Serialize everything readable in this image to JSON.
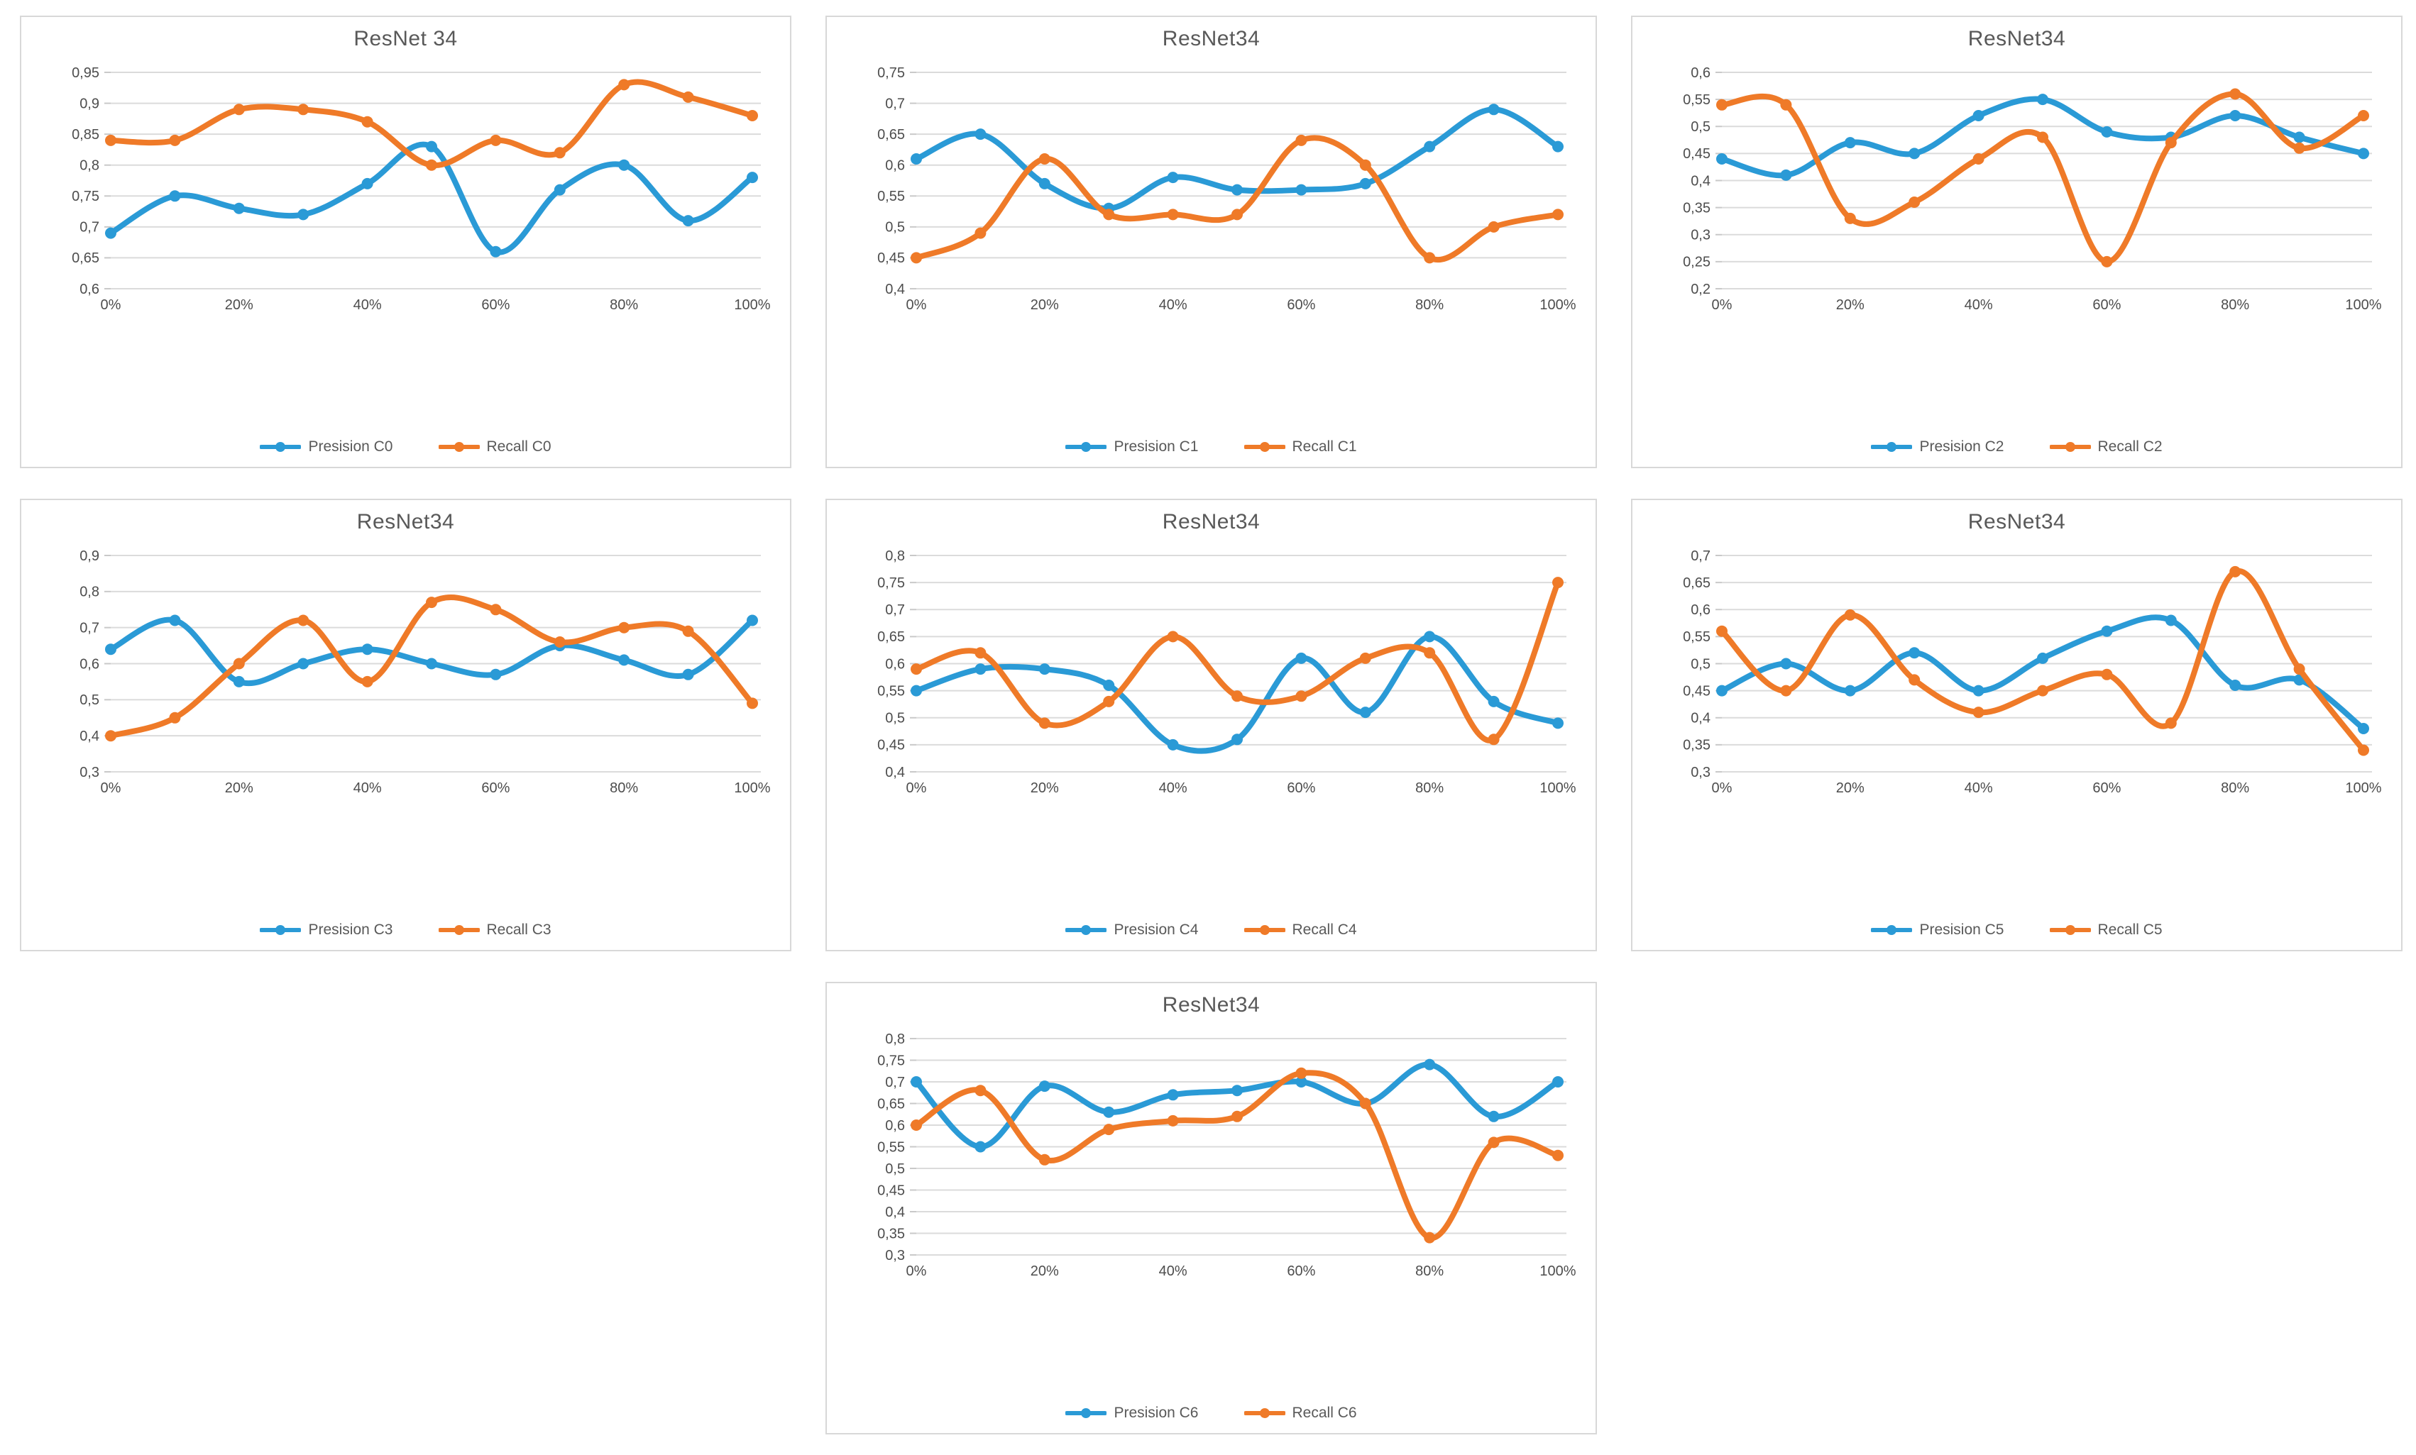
{
  "colors": {
    "precision": "#2A9AD6",
    "recall": "#EF7A28",
    "gridline": "#DBDBDB",
    "panel_border": "#D8D8D8",
    "tick_text": "#4D4D4D",
    "title_text": "#595959"
  },
  "chart_data": [
    {
      "type": "line",
      "title": "ResNet 34",
      "x": [
        0,
        10,
        20,
        30,
        40,
        50,
        60,
        70,
        80,
        90,
        100
      ],
      "x_tick_labels": [
        "0%",
        "20%",
        "40%",
        "60%",
        "80%",
        "100%"
      ],
      "ylim": [
        0.6,
        0.95
      ],
      "y_step": 0.05,
      "grid": "horizontal",
      "legend_position": "bottom",
      "smooth": true,
      "series": [
        {
          "name": "Presision C0",
          "color": "#2A9AD6",
          "values": [
            0.69,
            0.75,
            0.73,
            0.72,
            0.77,
            0.83,
            0.66,
            0.76,
            0.8,
            0.71,
            0.78
          ]
        },
        {
          "name": "Recall C0",
          "color": "#EF7A28",
          "values": [
            0.84,
            0.84,
            0.89,
            0.89,
            0.87,
            0.8,
            0.84,
            0.82,
            0.93,
            0.91,
            0.88
          ]
        }
      ]
    },
    {
      "type": "line",
      "title": "ResNet34",
      "x": [
        0,
        10,
        20,
        30,
        40,
        50,
        60,
        70,
        80,
        90,
        100
      ],
      "x_tick_labels": [
        "0%",
        "20%",
        "40%",
        "60%",
        "80%",
        "100%"
      ],
      "ylim": [
        0.4,
        0.75
      ],
      "y_step": 0.05,
      "grid": "horizontal",
      "legend_position": "bottom",
      "smooth": true,
      "series": [
        {
          "name": "Presision C1",
          "color": "#2A9AD6",
          "values": [
            0.61,
            0.65,
            0.57,
            0.53,
            0.58,
            0.56,
            0.56,
            0.57,
            0.63,
            0.69,
            0.63
          ]
        },
        {
          "name": "Recall C1",
          "color": "#EF7A28",
          "values": [
            0.45,
            0.49,
            0.61,
            0.52,
            0.52,
            0.52,
            0.64,
            0.6,
            0.45,
            0.5,
            0.52
          ]
        }
      ]
    },
    {
      "type": "line",
      "title": "ResNet34",
      "x": [
        0,
        10,
        20,
        30,
        40,
        50,
        60,
        70,
        80,
        90,
        100
      ],
      "x_tick_labels": [
        "0%",
        "20%",
        "40%",
        "60%",
        "80%",
        "100%"
      ],
      "ylim": [
        0.2,
        0.6
      ],
      "y_step": 0.05,
      "grid": "horizontal",
      "legend_position": "bottom",
      "smooth": true,
      "series": [
        {
          "name": "Presision C2",
          "color": "#2A9AD6",
          "values": [
            0.44,
            0.41,
            0.47,
            0.45,
            0.52,
            0.55,
            0.49,
            0.48,
            0.52,
            0.48,
            0.45
          ]
        },
        {
          "name": "Recall C2",
          "color": "#EF7A28",
          "values": [
            0.54,
            0.54,
            0.33,
            0.36,
            0.44,
            0.48,
            0.25,
            0.47,
            0.56,
            0.46,
            0.52
          ]
        }
      ]
    },
    {
      "type": "line",
      "title": "ResNet34",
      "x": [
        0,
        10,
        20,
        30,
        40,
        50,
        60,
        70,
        80,
        90,
        100
      ],
      "x_tick_labels": [
        "0%",
        "20%",
        "40%",
        "60%",
        "80%",
        "100%"
      ],
      "ylim": [
        0.3,
        0.9
      ],
      "y_step": 0.1,
      "grid": "horizontal",
      "legend_position": "bottom",
      "smooth": true,
      "series": [
        {
          "name": "Presision C3",
          "color": "#2A9AD6",
          "values": [
            0.64,
            0.72,
            0.55,
            0.6,
            0.64,
            0.6,
            0.57,
            0.65,
            0.61,
            0.57,
            0.72
          ]
        },
        {
          "name": "Recall C3",
          "color": "#EF7A28",
          "values": [
            0.4,
            0.45,
            0.6,
            0.72,
            0.55,
            0.77,
            0.75,
            0.66,
            0.7,
            0.69,
            0.49
          ]
        }
      ]
    },
    {
      "type": "line",
      "title": "ResNet34",
      "x": [
        0,
        10,
        20,
        30,
        40,
        50,
        60,
        70,
        80,
        90,
        100
      ],
      "x_tick_labels": [
        "0%",
        "20%",
        "40%",
        "60%",
        "80%",
        "100%"
      ],
      "ylim": [
        0.4,
        0.8
      ],
      "y_step": 0.05,
      "grid": "horizontal",
      "legend_position": "bottom",
      "smooth": true,
      "series": [
        {
          "name": "Presision C4",
          "color": "#2A9AD6",
          "values": [
            0.55,
            0.59,
            0.59,
            0.56,
            0.45,
            0.46,
            0.61,
            0.51,
            0.65,
            0.53,
            0.49
          ]
        },
        {
          "name": "Recall C4",
          "color": "#EF7A28",
          "values": [
            0.59,
            0.62,
            0.49,
            0.53,
            0.65,
            0.54,
            0.54,
            0.61,
            0.62,
            0.46,
            0.75
          ]
        }
      ]
    },
    {
      "type": "line",
      "title": "ResNet34",
      "x": [
        0,
        10,
        20,
        30,
        40,
        50,
        60,
        70,
        80,
        90,
        100
      ],
      "x_tick_labels": [
        "0%",
        "20%",
        "40%",
        "60%",
        "80%",
        "100%"
      ],
      "ylim": [
        0.3,
        0.7
      ],
      "y_step": 0.05,
      "grid": "horizontal",
      "legend_position": "bottom",
      "smooth": true,
      "series": [
        {
          "name": "Presision C5",
          "color": "#2A9AD6",
          "values": [
            0.45,
            0.5,
            0.45,
            0.52,
            0.45,
            0.51,
            0.56,
            0.58,
            0.46,
            0.47,
            0.38
          ]
        },
        {
          "name": "Recall C5",
          "color": "#EF7A28",
          "values": [
            0.56,
            0.45,
            0.59,
            0.47,
            0.41,
            0.45,
            0.48,
            0.39,
            0.67,
            0.49,
            0.34
          ]
        }
      ]
    },
    {
      "type": "line",
      "title": "ResNet34",
      "x": [
        0,
        10,
        20,
        30,
        40,
        50,
        60,
        70,
        80,
        90,
        100
      ],
      "x_tick_labels": [
        "0%",
        "20%",
        "40%",
        "60%",
        "80%",
        "100%"
      ],
      "ylim": [
        0.3,
        0.8
      ],
      "y_step": 0.05,
      "grid": "horizontal",
      "legend_position": "bottom",
      "smooth": true,
      "series": [
        {
          "name": "Presision C6",
          "color": "#2A9AD6",
          "values": [
            0.7,
            0.55,
            0.69,
            0.63,
            0.67,
            0.68,
            0.7,
            0.65,
            0.74,
            0.62,
            0.7
          ]
        },
        {
          "name": "Recall C6",
          "color": "#EF7A28",
          "values": [
            0.6,
            0.68,
            0.52,
            0.59,
            0.61,
            0.62,
            0.72,
            0.65,
            0.34,
            0.56,
            0.53
          ]
        }
      ]
    }
  ]
}
